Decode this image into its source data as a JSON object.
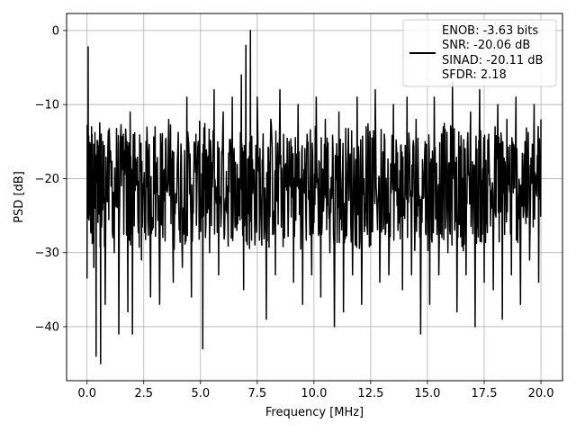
{
  "chart_data": {
    "type": "line",
    "xlabel": "Frequency [MHz]",
    "ylabel": "PSD [dB]",
    "xlim": [
      -0.9,
      20.95
    ],
    "ylim": [
      -47.3,
      2.3
    ],
    "xticks": [
      0.0,
      2.5,
      5.0,
      7.5,
      10.0,
      12.5,
      15.0,
      17.5,
      20.0
    ],
    "xtick_labels": [
      "0.0",
      "2.5",
      "5.0",
      "7.5",
      "10.0",
      "12.5",
      "15.0",
      "17.5",
      "20.0"
    ],
    "yticks": [
      0,
      -10,
      -20,
      -30,
      -40
    ],
    "ytick_labels": [
      "0",
      "−10",
      "−20",
      "−30",
      "−40"
    ],
    "grid": true,
    "line_color": "#000000",
    "legend": {
      "placement": "top-right",
      "lines": [
        "ENOB: -3.63 bits",
        "SNR: -20.06 dB",
        "SINAD: -20.11 dB",
        "SFDR: 2.18"
      ]
    },
    "series": [
      {
        "values_sampled": [
          [
            0.0,
            -33.5
          ],
          [
            0.05,
            -2.2
          ],
          [
            0.1,
            -24
          ],
          [
            0.2,
            -13
          ],
          [
            0.3,
            -32
          ],
          [
            0.4,
            -44
          ],
          [
            0.5,
            -18
          ],
          [
            0.6,
            -45
          ],
          [
            0.7,
            -15
          ],
          [
            0.8,
            -37
          ],
          [
            1.0,
            -16
          ],
          [
            1.2,
            -30
          ],
          [
            1.4,
            -41
          ],
          [
            1.6,
            -14
          ],
          [
            1.8,
            -38
          ],
          [
            1.9,
            -11
          ],
          [
            2.0,
            -41
          ],
          [
            2.2,
            -20
          ],
          [
            2.4,
            -31
          ],
          [
            2.6,
            -15
          ],
          [
            2.8,
            -36
          ],
          [
            3.0,
            -13
          ],
          [
            3.2,
            -37
          ],
          [
            3.4,
            -23
          ],
          [
            3.6,
            -12
          ],
          [
            3.8,
            -34
          ],
          [
            4.0,
            -16
          ],
          [
            4.2,
            -32
          ],
          [
            4.4,
            -9
          ],
          [
            4.6,
            -36
          ],
          [
            4.8,
            -14
          ],
          [
            5.0,
            -27
          ],
          [
            5.1,
            -43
          ],
          [
            5.2,
            -17
          ],
          [
            5.4,
            -30
          ],
          [
            5.6,
            -8
          ],
          [
            5.8,
            -33
          ],
          [
            6.0,
            -11
          ],
          [
            6.2,
            -25
          ],
          [
            6.4,
            -9
          ],
          [
            6.6,
            -27
          ],
          [
            6.8,
            -6
          ],
          [
            6.9,
            -35
          ],
          [
            7.0,
            -2
          ],
          [
            7.1,
            -19
          ],
          [
            7.2,
            0
          ],
          [
            7.3,
            -22
          ],
          [
            7.5,
            -9
          ],
          [
            7.7,
            -29
          ],
          [
            7.9,
            -39
          ],
          [
            8.1,
            -12
          ],
          [
            8.3,
            -33
          ],
          [
            8.5,
            -8
          ],
          [
            8.7,
            -28
          ],
          [
            8.9,
            -15
          ],
          [
            9.1,
            -34
          ],
          [
            9.3,
            -10
          ],
          [
            9.5,
            -37
          ],
          [
            9.7,
            -14
          ],
          [
            9.9,
            -33
          ],
          [
            10.1,
            -9
          ],
          [
            10.3,
            -36
          ],
          [
            10.5,
            -12
          ],
          [
            10.7,
            -30
          ],
          [
            10.9,
            -40
          ],
          [
            11.1,
            -11
          ],
          [
            11.3,
            -38
          ],
          [
            11.5,
            -16
          ],
          [
            11.7,
            -33
          ],
          [
            11.9,
            -9
          ],
          [
            12.1,
            -37
          ],
          [
            12.3,
            -13
          ],
          [
            12.5,
            -29
          ],
          [
            12.7,
            -8
          ],
          [
            12.9,
            -34
          ],
          [
            13.1,
            -14
          ],
          [
            13.3,
            -33
          ],
          [
            13.5,
            -10
          ],
          [
            13.7,
            -27
          ],
          [
            13.9,
            -35
          ],
          [
            14.1,
            -9
          ],
          [
            14.3,
            -33
          ],
          [
            14.5,
            -12
          ],
          [
            14.7,
            -41
          ],
          [
            14.9,
            -15
          ],
          [
            15.1,
            -37
          ],
          [
            15.3,
            -9
          ],
          [
            15.5,
            -33
          ],
          [
            15.7,
            -13
          ],
          [
            15.9,
            -30
          ],
          [
            16.1,
            -7
          ],
          [
            16.3,
            -38
          ],
          [
            16.5,
            -16
          ],
          [
            16.7,
            -33
          ],
          [
            16.9,
            -11
          ],
          [
            17.1,
            -40
          ],
          [
            17.3,
            -8
          ],
          [
            17.5,
            -34
          ],
          [
            17.7,
            -14
          ],
          [
            17.9,
            -35
          ],
          [
            18.1,
            -10
          ],
          [
            18.3,
            -39
          ],
          [
            18.5,
            -12
          ],
          [
            18.7,
            -33
          ],
          [
            18.9,
            -9
          ],
          [
            19.1,
            -37
          ],
          [
            19.3,
            -15
          ],
          [
            19.5,
            -31
          ],
          [
            19.7,
            -10
          ],
          [
            19.9,
            -34
          ],
          [
            20.0,
            -12
          ]
        ]
      }
    ]
  }
}
